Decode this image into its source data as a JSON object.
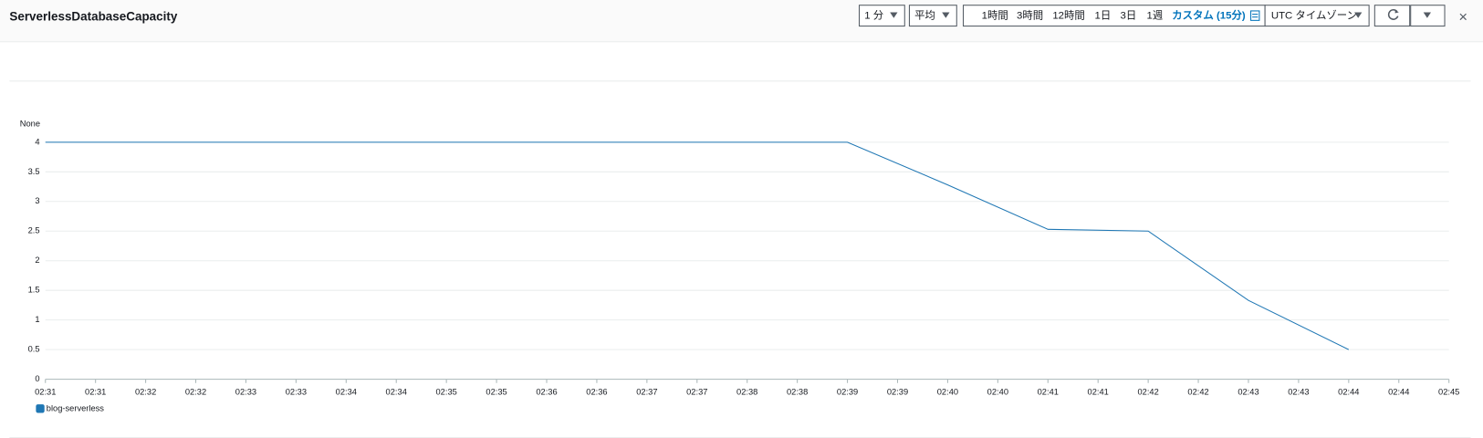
{
  "toolbar": {
    "title": "ServerlessDatabaseCapacity",
    "period": "1 分",
    "statistic": "平均",
    "ranges": [
      "1時間",
      "3時間",
      "12時間",
      "1日",
      "3日",
      "1週"
    ],
    "custom_range": "カスタム (15分)",
    "timezone": "UTC タイムゾーン",
    "close": "×"
  },
  "chart_data": {
    "type": "line",
    "y_label": "None",
    "x": [
      "02:31",
      "02:32",
      "02:33",
      "02:34",
      "02:35",
      "02:36",
      "02:37",
      "02:38",
      "02:39",
      "02:40",
      "02:41",
      "02:42",
      "02:43",
      "02:44"
    ],
    "series": [
      {
        "name": "blog-serverless",
        "color": "#1f77b4",
        "values": [
          4,
          4,
          4,
          4,
          4,
          4,
          4,
          4,
          4,
          3.28,
          2.53,
          2.5,
          1.33,
          0.5
        ]
      }
    ],
    "xlim": [
      "02:31",
      "02:45"
    ],
    "xticks": [
      "02:31",
      {
        "value": "02:31:30",
        "label": "02:31"
      },
      "02:32",
      {
        "value": "02:32:30",
        "label": "02:32"
      },
      "02:33",
      {
        "value": "02:33:30",
        "label": "02:33"
      },
      "02:34",
      {
        "value": "02:34:30",
        "label": "02:34"
      },
      "02:35",
      {
        "value": "02:35:30",
        "label": "02:35"
      },
      "02:36",
      {
        "value": "02:36:30",
        "label": "02:36"
      },
      "02:37",
      {
        "value": "02:37:30",
        "label": "02:37"
      },
      "02:38",
      {
        "value": "02:38:30",
        "label": "02:38"
      },
      "02:39",
      {
        "value": "02:39:30",
        "label": "02:39"
      },
      "02:40",
      {
        "value": "02:40:30",
        "label": "02:40"
      },
      "02:41",
      {
        "value": "02:41:30",
        "label": "02:41"
      },
      "02:42",
      {
        "value": "02:42:30",
        "label": "02:42"
      },
      "02:43",
      {
        "value": "02:43:30",
        "label": "02:43"
      },
      "02:44",
      {
        "value": "02:44:30",
        "label": "02:44"
      },
      "02:45"
    ],
    "ylim": [
      0,
      4
    ],
    "yticks": [
      0,
      0.5,
      1,
      1.5,
      2,
      2.5,
      3,
      3.5,
      4
    ],
    "grid": true
  }
}
